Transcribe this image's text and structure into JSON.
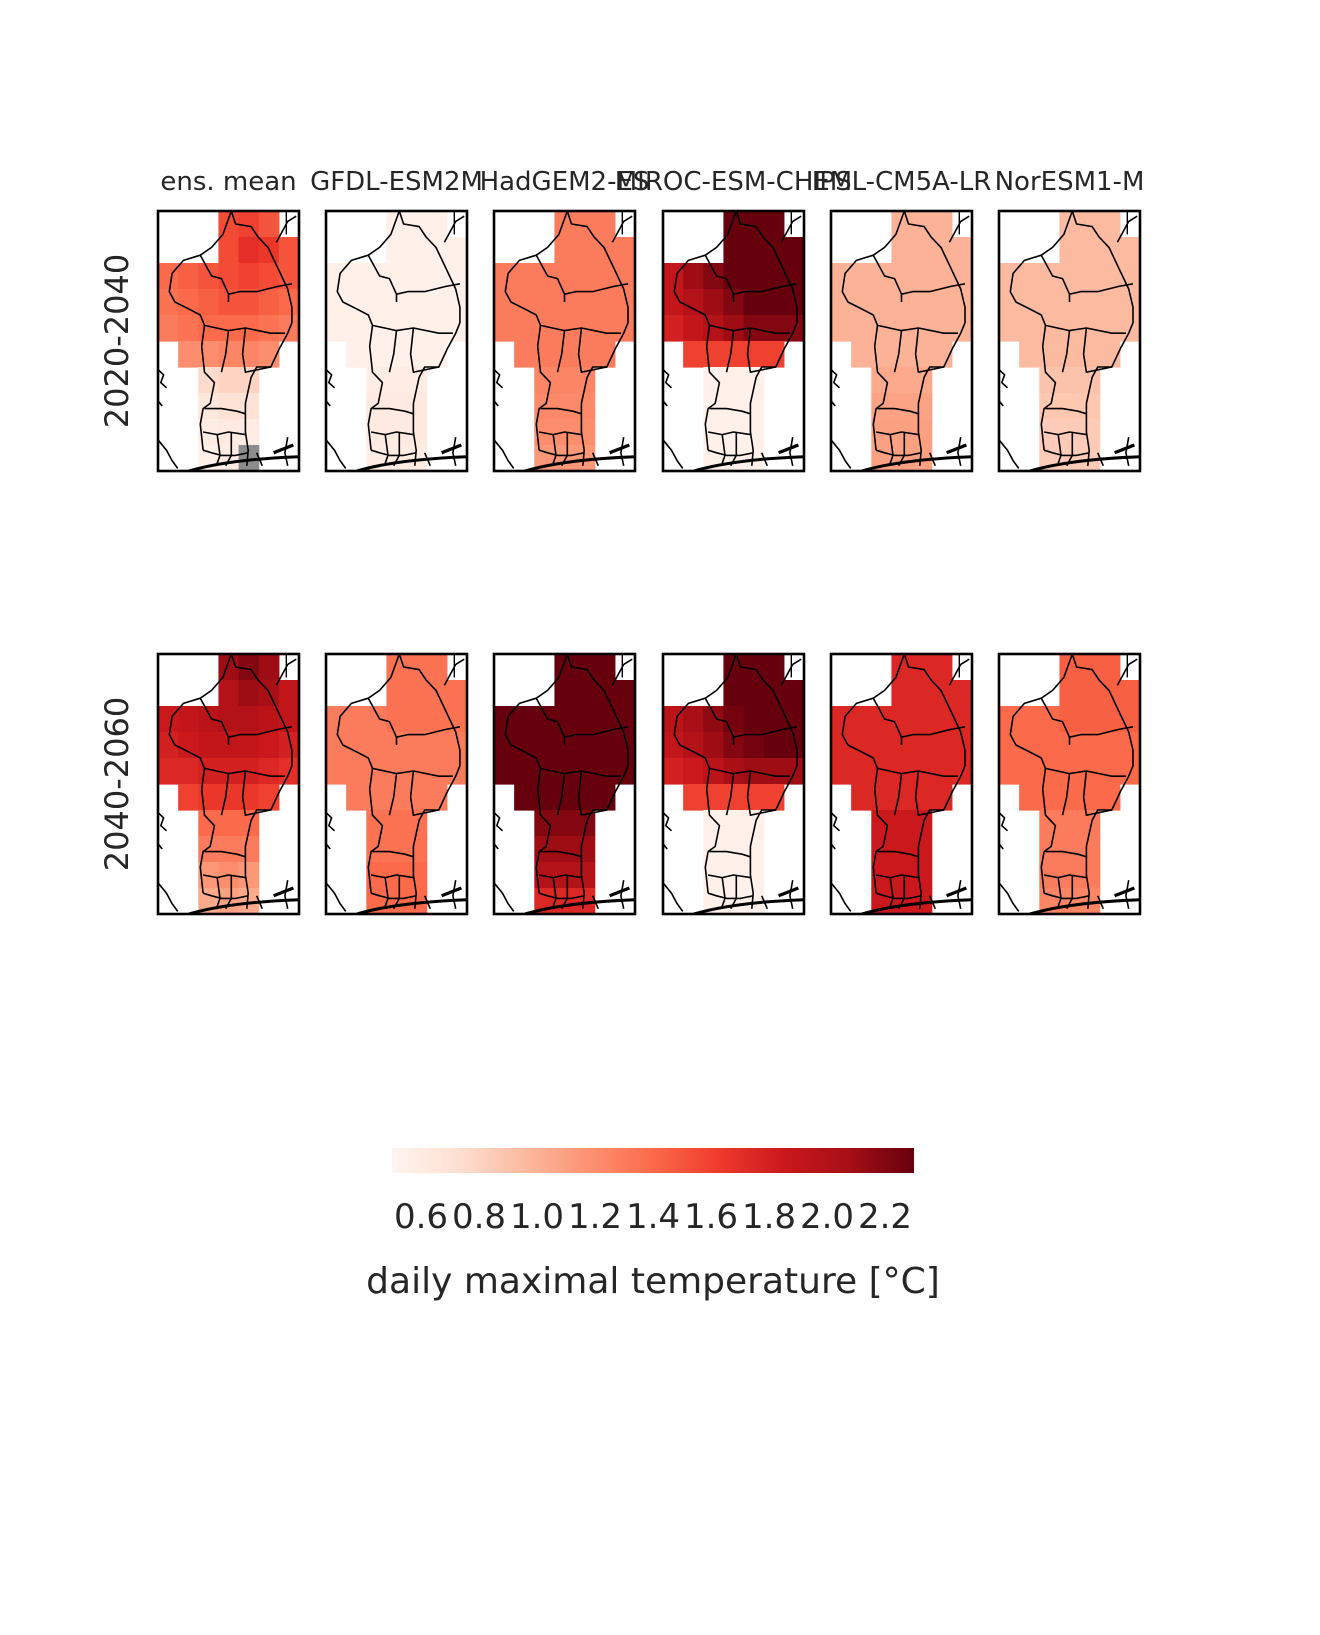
{
  "chart_data": {
    "type": "heatmap",
    "description_of_layout": "",
    "models": [
      "ens. mean",
      "GFDL-ESM2M",
      "HadGEM2-ES",
      "MIROC-ESM-CHEM",
      "IPSL-CM5A-LR",
      "NorESM1-M"
    ],
    "periods": [
      "2020-2040",
      "2040-2060"
    ],
    "colorbar": {
      "colormap": "Reds",
      "colors": [
        "#fff5f0",
        "#fee0d2",
        "#fcbba1",
        "#fc9272",
        "#fb6a4a",
        "#ef3b2c",
        "#cb181d",
        "#a50f15",
        "#67000d"
      ],
      "range": [
        0.5,
        2.3
      ],
      "ticks": [
        "0.6",
        "0.8",
        "1.0",
        "1.2",
        "1.4",
        "1.6",
        "1.8",
        "2.0",
        "2.2"
      ],
      "label": "daily maximal temperature [°C]"
    },
    "nodata_color": "#8c8c8c",
    "maps": [
      [
        [
          [
            null,
            null,
            null,
            1.55,
            1.6,
            1.5,
            null
          ],
          [
            null,
            null,
            null,
            1.55,
            1.7,
            1.65,
            1.5
          ],
          [
            1.4,
            1.45,
            1.5,
            1.55,
            1.6,
            1.55,
            1.5
          ],
          [
            1.35,
            1.4,
            1.45,
            1.5,
            1.5,
            1.45,
            1.4
          ],
          [
            1.3,
            1.35,
            1.4,
            1.4,
            1.4,
            1.35,
            1.3
          ],
          [
            null,
            1.2,
            1.2,
            1.25,
            1.25,
            1.2,
            null
          ],
          [
            null,
            null,
            0.75,
            0.8,
            0.8,
            null,
            null
          ],
          [
            null,
            null,
            0.65,
            0.7,
            0.7,
            null,
            null
          ],
          [
            null,
            null,
            0.6,
            0.62,
            0.6,
            null,
            null
          ],
          [
            null,
            null,
            0.55,
            0.6,
            "nd",
            null,
            null
          ]
        ],
        [
          [
            null,
            null,
            null,
            0.55,
            0.55,
            0.55,
            null
          ],
          [
            null,
            null,
            null,
            0.55,
            0.55,
            0.55,
            0.55
          ],
          [
            0.55,
            0.55,
            0.55,
            0.55,
            0.55,
            0.55,
            0.55
          ],
          [
            0.55,
            0.55,
            0.55,
            0.55,
            0.55,
            0.55,
            0.55
          ],
          [
            0.55,
            0.55,
            0.55,
            0.55,
            0.55,
            0.55,
            0.55
          ],
          [
            null,
            0.55,
            0.55,
            0.55,
            0.55,
            0.55,
            null
          ],
          [
            null,
            null,
            0.6,
            0.6,
            0.6,
            null,
            null
          ],
          [
            null,
            null,
            0.62,
            0.62,
            0.62,
            null,
            null
          ],
          [
            null,
            null,
            0.62,
            0.62,
            0.62,
            null,
            null
          ],
          [
            null,
            null,
            0.6,
            0.6,
            0.6,
            null,
            null
          ]
        ],
        [
          [
            null,
            null,
            null,
            1.3,
            1.3,
            1.3,
            null
          ],
          [
            null,
            null,
            null,
            1.3,
            1.3,
            1.3,
            1.3
          ],
          [
            1.3,
            1.3,
            1.3,
            1.3,
            1.3,
            1.3,
            1.3
          ],
          [
            1.3,
            1.3,
            1.3,
            1.3,
            1.3,
            1.3,
            1.3
          ],
          [
            1.3,
            1.3,
            1.3,
            1.3,
            1.3,
            1.3,
            1.3
          ],
          [
            null,
            1.3,
            1.3,
            1.3,
            1.3,
            1.3,
            null
          ],
          [
            null,
            null,
            1.25,
            1.25,
            1.25,
            null,
            null
          ],
          [
            null,
            null,
            1.22,
            1.22,
            1.22,
            null,
            null
          ],
          [
            null,
            null,
            1.2,
            1.2,
            1.2,
            null,
            null
          ],
          [
            null,
            null,
            1.15,
            1.15,
            1.15,
            null,
            null
          ]
        ],
        [
          [
            null,
            null,
            null,
            2.3,
            2.3,
            2.3,
            null
          ],
          [
            null,
            null,
            null,
            2.3,
            2.3,
            2.3,
            2.3
          ],
          [
            1.9,
            2.1,
            2.2,
            2.3,
            2.3,
            2.3,
            2.3
          ],
          [
            1.9,
            2.0,
            2.1,
            2.2,
            2.3,
            2.3,
            2.3
          ],
          [
            1.8,
            1.9,
            2.0,
            2.1,
            2.2,
            2.2,
            2.2
          ],
          [
            null,
            1.6,
            1.6,
            1.6,
            1.6,
            1.6,
            null
          ],
          [
            null,
            null,
            0.55,
            0.55,
            0.55,
            null,
            null
          ],
          [
            null,
            null,
            0.55,
            0.55,
            0.55,
            null,
            null
          ],
          [
            null,
            null,
            0.55,
            0.55,
            0.55,
            null,
            null
          ],
          [
            null,
            null,
            0.55,
            0.55,
            0.55,
            null,
            null
          ]
        ],
        [
          [
            null,
            null,
            null,
            1.0,
            1.0,
            1.0,
            null
          ],
          [
            null,
            null,
            null,
            1.0,
            1.0,
            1.0,
            1.0
          ],
          [
            1.0,
            1.0,
            1.0,
            1.0,
            1.0,
            1.0,
            1.0
          ],
          [
            1.0,
            1.0,
            1.0,
            1.0,
            1.0,
            1.0,
            1.0
          ],
          [
            1.0,
            1.0,
            1.0,
            1.0,
            1.0,
            1.0,
            1.0
          ],
          [
            null,
            1.0,
            1.0,
            1.0,
            1.0,
            1.0,
            null
          ],
          [
            null,
            null,
            1.05,
            1.05,
            1.05,
            null,
            null
          ],
          [
            null,
            null,
            1.08,
            1.08,
            1.08,
            null,
            null
          ],
          [
            null,
            null,
            1.1,
            1.1,
            1.1,
            null,
            null
          ],
          [
            null,
            null,
            1.1,
            1.1,
            1.1,
            null,
            null
          ]
        ],
        [
          [
            null,
            null,
            null,
            0.95,
            0.95,
            0.95,
            null
          ],
          [
            null,
            null,
            null,
            0.95,
            0.95,
            0.95,
            0.95
          ],
          [
            0.95,
            0.95,
            0.95,
            0.95,
            0.95,
            0.95,
            0.95
          ],
          [
            0.95,
            0.95,
            0.95,
            0.95,
            0.95,
            0.95,
            0.95
          ],
          [
            0.95,
            0.95,
            0.95,
            0.95,
            0.95,
            0.95,
            0.95
          ],
          [
            null,
            0.95,
            0.95,
            0.95,
            0.95,
            0.95,
            null
          ],
          [
            null,
            null,
            0.9,
            0.9,
            0.9,
            null,
            null
          ],
          [
            null,
            null,
            0.88,
            0.88,
            0.88,
            null,
            null
          ],
          [
            null,
            null,
            0.85,
            0.85,
            0.85,
            null,
            null
          ],
          [
            null,
            null,
            0.85,
            0.85,
            0.85,
            null,
            null
          ]
        ]
      ],
      [
        [
          [
            null,
            null,
            null,
            2.1,
            2.2,
            2.1,
            null
          ],
          [
            null,
            null,
            null,
            2.0,
            2.1,
            2.05,
            1.9
          ],
          [
            1.85,
            1.9,
            1.95,
            2.0,
            2.0,
            1.95,
            1.9
          ],
          [
            1.8,
            1.85,
            1.9,
            1.9,
            1.9,
            1.85,
            1.8
          ],
          [
            1.75,
            1.75,
            1.8,
            1.8,
            1.8,
            1.75,
            1.7
          ],
          [
            null,
            1.6,
            1.65,
            1.65,
            1.65,
            1.6,
            null
          ],
          [
            null,
            null,
            1.4,
            1.4,
            1.4,
            null,
            null
          ],
          [
            null,
            null,
            1.3,
            1.3,
            1.3,
            null,
            null
          ],
          [
            null,
            null,
            1.15,
            1.2,
            1.15,
            null,
            null
          ],
          [
            null,
            null,
            1.05,
            1.1,
            1.05,
            null,
            null
          ]
        ],
        [
          [
            null,
            null,
            null,
            1.35,
            1.35,
            1.35,
            null
          ],
          [
            null,
            null,
            null,
            1.35,
            1.35,
            1.35,
            1.35
          ],
          [
            1.3,
            1.3,
            1.3,
            1.35,
            1.35,
            1.35,
            1.35
          ],
          [
            1.3,
            1.3,
            1.3,
            1.3,
            1.3,
            1.3,
            1.3
          ],
          [
            1.3,
            1.3,
            1.3,
            1.3,
            1.3,
            1.3,
            1.3
          ],
          [
            null,
            1.3,
            1.3,
            1.3,
            1.3,
            1.3,
            null
          ],
          [
            null,
            null,
            1.35,
            1.35,
            1.35,
            null,
            null
          ],
          [
            null,
            null,
            1.35,
            1.35,
            1.35,
            null,
            null
          ],
          [
            null,
            null,
            1.4,
            1.4,
            1.4,
            null,
            null
          ],
          [
            null,
            null,
            1.4,
            1.4,
            1.4,
            null,
            null
          ]
        ],
        [
          [
            null,
            null,
            null,
            2.3,
            2.3,
            2.3,
            null
          ],
          [
            null,
            null,
            null,
            2.3,
            2.3,
            2.3,
            2.3
          ],
          [
            2.3,
            2.3,
            2.3,
            2.3,
            2.3,
            2.3,
            2.3
          ],
          [
            2.3,
            2.3,
            2.3,
            2.3,
            2.3,
            2.3,
            2.3
          ],
          [
            2.3,
            2.3,
            2.3,
            2.3,
            2.3,
            2.3,
            2.3
          ],
          [
            null,
            2.3,
            2.3,
            2.3,
            2.3,
            2.3,
            null
          ],
          [
            null,
            null,
            2.2,
            2.2,
            2.2,
            null,
            null
          ],
          [
            null,
            null,
            2.1,
            2.1,
            2.1,
            null,
            null
          ],
          [
            null,
            null,
            2.0,
            2.0,
            2.0,
            null,
            null
          ],
          [
            null,
            null,
            1.75,
            1.75,
            1.75,
            null,
            null
          ]
        ],
        [
          [
            null,
            null,
            null,
            2.3,
            2.3,
            2.3,
            null
          ],
          [
            null,
            null,
            null,
            2.3,
            2.3,
            2.3,
            2.3
          ],
          [
            1.95,
            2.05,
            2.15,
            2.25,
            2.3,
            2.3,
            2.3
          ],
          [
            1.9,
            2.0,
            2.1,
            2.2,
            2.25,
            2.3,
            2.3
          ],
          [
            1.8,
            1.85,
            1.95,
            2.05,
            2.1,
            2.1,
            2.1
          ],
          [
            null,
            1.6,
            1.6,
            1.6,
            1.6,
            1.6,
            null
          ],
          [
            null,
            null,
            0.55,
            0.55,
            0.55,
            null,
            null
          ],
          [
            null,
            null,
            0.55,
            0.55,
            0.55,
            null,
            null
          ],
          [
            null,
            null,
            0.55,
            0.55,
            0.55,
            null,
            null
          ],
          [
            null,
            null,
            0.55,
            0.55,
            0.55,
            null,
            null
          ]
        ],
        [
          [
            null,
            null,
            null,
            1.75,
            1.75,
            1.75,
            null
          ],
          [
            null,
            null,
            null,
            1.75,
            1.75,
            1.75,
            1.75
          ],
          [
            1.75,
            1.75,
            1.75,
            1.75,
            1.75,
            1.75,
            1.75
          ],
          [
            1.75,
            1.75,
            1.75,
            1.75,
            1.75,
            1.75,
            1.75
          ],
          [
            1.75,
            1.75,
            1.75,
            1.75,
            1.75,
            1.75,
            1.75
          ],
          [
            null,
            1.75,
            1.75,
            1.75,
            1.75,
            1.75,
            null
          ],
          [
            null,
            null,
            1.85,
            1.85,
            1.85,
            null,
            null
          ],
          [
            null,
            null,
            1.85,
            1.85,
            1.85,
            null,
            null
          ],
          [
            null,
            null,
            1.85,
            1.85,
            1.85,
            null,
            null
          ],
          [
            null,
            null,
            1.85,
            1.85,
            1.85,
            null,
            null
          ]
        ],
        [
          [
            null,
            null,
            null,
            1.45,
            1.45,
            1.45,
            null
          ],
          [
            null,
            null,
            null,
            1.45,
            1.45,
            1.45,
            1.45
          ],
          [
            1.4,
            1.4,
            1.4,
            1.45,
            1.45,
            1.45,
            1.45
          ],
          [
            1.4,
            1.4,
            1.4,
            1.4,
            1.4,
            1.4,
            1.4
          ],
          [
            1.4,
            1.4,
            1.4,
            1.4,
            1.4,
            1.4,
            1.4
          ],
          [
            null,
            1.4,
            1.4,
            1.4,
            1.4,
            1.4,
            null
          ],
          [
            null,
            null,
            1.3,
            1.3,
            1.3,
            null,
            null
          ],
          [
            null,
            null,
            1.3,
            1.3,
            1.3,
            null,
            null
          ],
          [
            null,
            null,
            1.3,
            1.3,
            1.3,
            null,
            null
          ],
          [
            null,
            null,
            1.25,
            1.25,
            1.25,
            null,
            null
          ]
        ]
      ]
    ]
  }
}
